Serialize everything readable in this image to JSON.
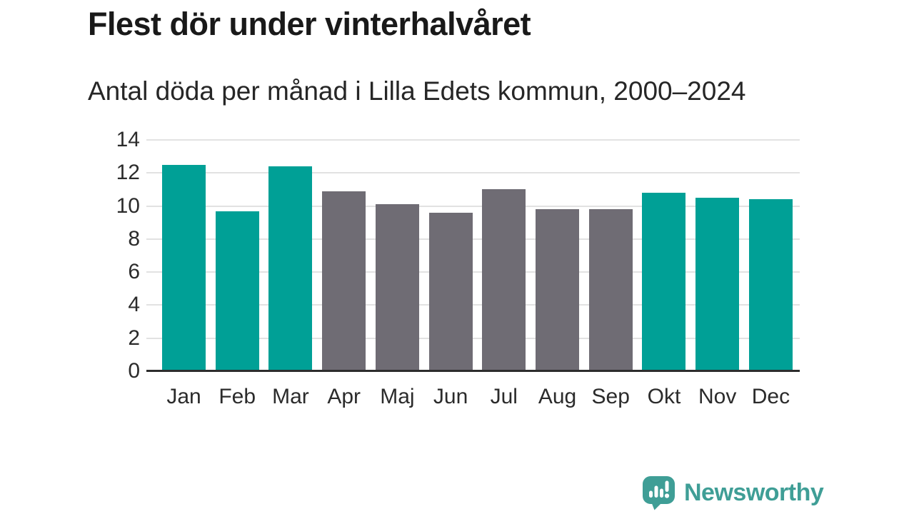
{
  "header": {
    "title": "Flest dör under vinterhalvåret",
    "subtitle": "Antal döda per månad i Lilla Edets kommun, 2000–2024"
  },
  "chart_data": {
    "type": "bar",
    "title": "Flest dör under vinterhalvåret",
    "subtitle": "Antal döda per månad i Lilla Edets kommun, 2000–2024",
    "categories": [
      "Jan",
      "Feb",
      "Mar",
      "Apr",
      "Maj",
      "Jun",
      "Jul",
      "Aug",
      "Sep",
      "Okt",
      "Nov",
      "Dec"
    ],
    "values": [
      12.5,
      9.7,
      12.4,
      10.9,
      10.1,
      9.6,
      11.0,
      9.8,
      9.8,
      10.8,
      10.5,
      10.4
    ],
    "bar_season": [
      "winter",
      "winter",
      "winter",
      "summer",
      "summer",
      "summer",
      "summer",
      "summer",
      "summer",
      "winter",
      "winter",
      "winter"
    ],
    "colors": {
      "winter": "#00a096",
      "summer": "#6f6c74"
    },
    "xlabel": "",
    "ylabel": "",
    "ylim": [
      0,
      14
    ],
    "yticks": [
      0,
      2,
      4,
      6,
      8,
      10,
      12,
      14
    ],
    "grid": true,
    "legend_position": "none",
    "axis_line_color": "#2d2d2d",
    "gridline_color": "#e2e2e2"
  },
  "footer": {
    "brand": "Newsworthy",
    "brand_color": "#3f9e96",
    "logo_icon": "speech-bubble-bar-chart-exclamation"
  }
}
